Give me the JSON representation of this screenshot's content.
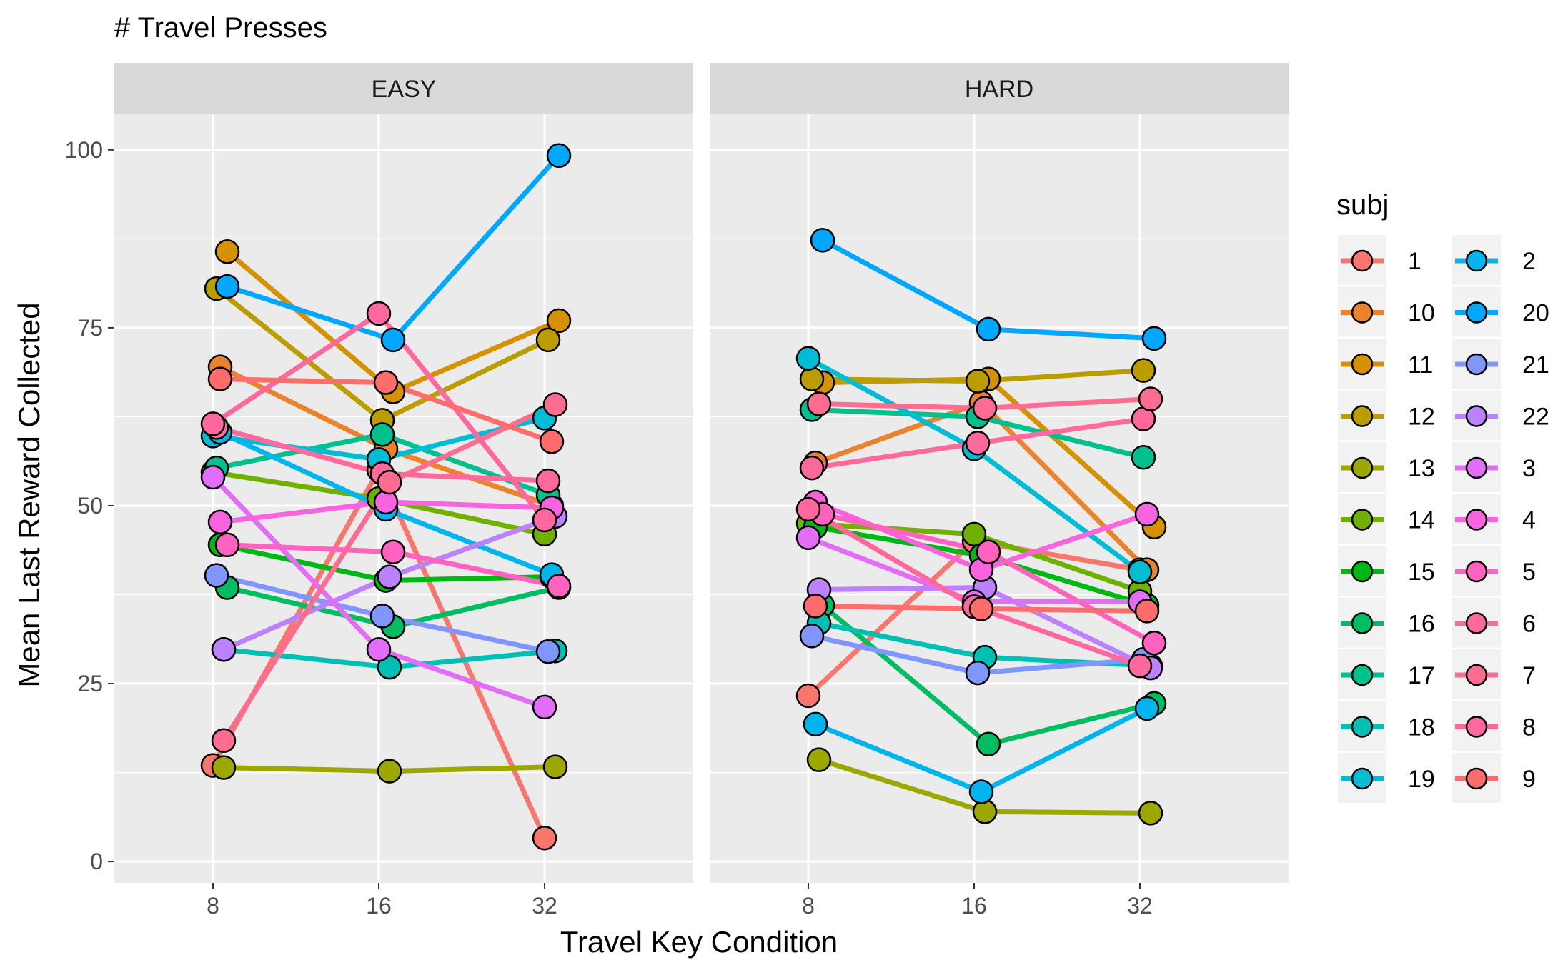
{
  "chart_data": {
    "type": "line",
    "title": "# Travel Presses",
    "xlabel": "Travel Key Condition",
    "ylabel": "Mean Last Reward Collected",
    "x_categories": [
      "8",
      "16",
      "32"
    ],
    "y_ticks": [
      0,
      25,
      50,
      75,
      100
    ],
    "ylim": [
      -3,
      105
    ],
    "grid": true,
    "legend_position": "right",
    "legend_title": "subj",
    "facets": [
      "EASY",
      "HARD"
    ],
    "series": [
      {
        "name": "1",
        "color": "#F8766D",
        "values": {
          "EASY": [
            13.5,
            55,
            3.3
          ],
          "HARD": [
            23.3,
            45,
            41
          ]
        }
      },
      {
        "name": "10",
        "color": "#E9842C",
        "values": {
          "EASY": [
            69.5,
            58,
            50
          ],
          "HARD": [
            56,
            64.5,
            41
          ]
        }
      },
      {
        "name": "11",
        "color": "#D69100",
        "values": {
          "EASY": [
            85.7,
            66,
            76
          ],
          "HARD": [
            67.3,
            67.8,
            47
          ]
        }
      },
      {
        "name": "12",
        "color": "#BC9D00",
        "values": {
          "EASY": [
            80.5,
            62,
            73.3
          ],
          "HARD": [
            67.8,
            67.5,
            69
          ]
        }
      },
      {
        "name": "13",
        "color": "#9CA700",
        "values": {
          "EASY": [
            13.2,
            12.7,
            13.3
          ],
          "HARD": [
            14.3,
            7,
            6.8
          ]
        }
      },
      {
        "name": "14",
        "color": "#6FB000",
        "values": {
          "EASY": [
            54.7,
            51,
            46
          ],
          "HARD": [
            47.5,
            46,
            38
          ]
        }
      },
      {
        "name": "15",
        "color": "#00B813",
        "values": {
          "EASY": [
            44.5,
            39.5,
            40
          ],
          "HARD": [
            47,
            43,
            36
          ]
        }
      },
      {
        "name": "16",
        "color": "#00BD61",
        "values": {
          "EASY": [
            38.5,
            33,
            38.5
          ],
          "HARD": [
            36,
            16.5,
            22.2
          ]
        }
      },
      {
        "name": "17",
        "color": "#00C08E",
        "values": {
          "EASY": [
            55.3,
            60,
            51.5
          ],
          "HARD": [
            63.5,
            62.5,
            56.8
          ]
        }
      },
      {
        "name": "18",
        "color": "#00C0B4",
        "values": {
          "EASY": [
            29.8,
            27.3,
            29.6
          ],
          "HARD": [
            33.5,
            28.7,
            27.5
          ]
        }
      },
      {
        "name": "19",
        "color": "#00BDD4",
        "values": {
          "EASY": [
            59.8,
            56.5,
            62.3
          ],
          "HARD": [
            70.7,
            58,
            40.7
          ]
        }
      },
      {
        "name": "2",
        "color": "#00B5EE",
        "values": {
          "EASY": [
            60.3,
            49.5,
            40.3
          ],
          "HARD": [
            19.3,
            9.8,
            21.5
          ]
        }
      },
      {
        "name": "20",
        "color": "#00A7FF",
        "values": {
          "EASY": [
            80.8,
            73.3,
            99.2
          ],
          "HARD": [
            87.3,
            74.8,
            73.5
          ]
        }
      },
      {
        "name": "21",
        "color": "#7F96FF",
        "values": {
          "EASY": [
            40.2,
            34.5,
            29.5
          ],
          "HARD": [
            31.7,
            26.5,
            28.4
          ]
        }
      },
      {
        "name": "22",
        "color": "#BC81FF",
        "values": {
          "EASY": [
            29.8,
            40,
            48.5
          ],
          "HARD": [
            38.2,
            38.5,
            27.2
          ]
        }
      },
      {
        "name": "3",
        "color": "#E26EF7",
        "values": {
          "EASY": [
            54,
            29.8,
            21.7
          ],
          "HARD": [
            45.5,
            36.5,
            36.5
          ]
        }
      },
      {
        "name": "4",
        "color": "#F863DF",
        "values": {
          "EASY": [
            47.7,
            50.5,
            49.7
          ],
          "HARD": [
            50.5,
            41,
            48.8
          ]
        }
      },
      {
        "name": "5",
        "color": "#FF62BF",
        "values": {
          "EASY": [
            44.5,
            43.5,
            38.7
          ],
          "HARD": [
            48.8,
            43.5,
            30.7
          ]
        }
      },
      {
        "name": "6",
        "color": "#FF6A9A",
        "values": {
          "EASY": [
            61,
            54.5,
            53.5
          ],
          "HARD": [
            55.3,
            58.8,
            62.2
          ]
        }
      },
      {
        "name": "7",
        "color": "#FF6C91",
        "values": {
          "EASY": [
            17,
            53.3,
            64.2
          ],
          "HARD": [
            64.3,
            63.7,
            65
          ]
        }
      },
      {
        "name": "8",
        "color": "#FF689F",
        "values": {
          "EASY": [
            61.5,
            77,
            48
          ],
          "HARD": [
            49.5,
            35.8,
            27.5
          ]
        }
      },
      {
        "name": "9",
        "color": "#FF6C6C",
        "values": {
          "EASY": [
            67.8,
            67.3,
            59
          ],
          "HARD": [
            35.9,
            35.5,
            35.2
          ]
        }
      }
    ]
  }
}
